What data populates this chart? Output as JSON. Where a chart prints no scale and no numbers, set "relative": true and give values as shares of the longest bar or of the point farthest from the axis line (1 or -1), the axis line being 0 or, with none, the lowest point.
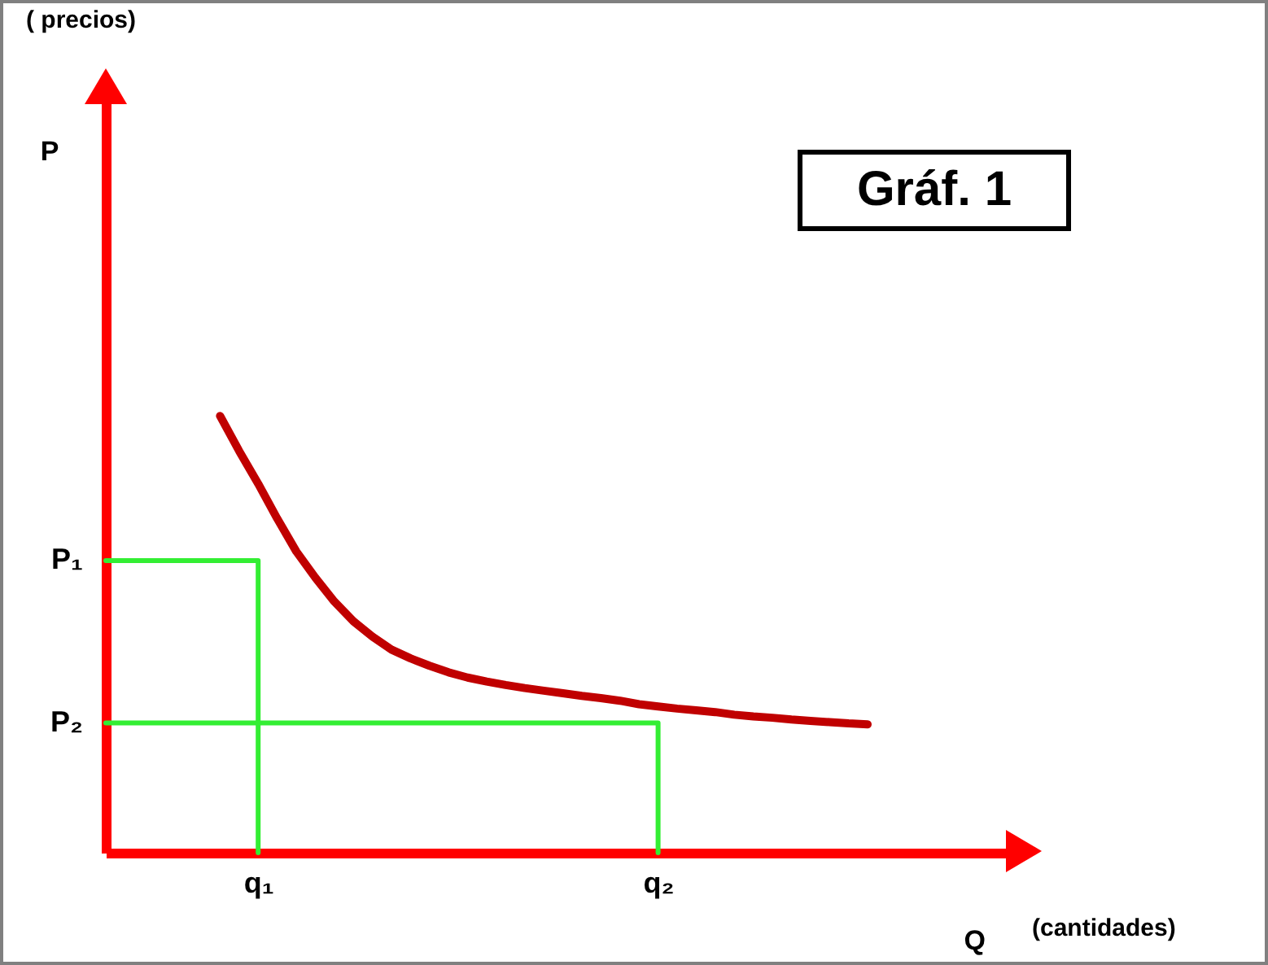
{
  "chart_data": {
    "type": "line",
    "relative": true,
    "title": "Gráf. 1",
    "xlabel": "Q",
    "ylabel": "P",
    "ylim": [
      0,
      1.74
    ],
    "annotations": [
      "( precios)",
      "(cantidades)",
      "P₁",
      "P₂"
    ],
    "categories": [
      null,
      null,
      null,
      null,
      null,
      null,
      null,
      null,
      "q₁",
      null,
      null,
      null,
      null,
      null,
      null,
      null,
      null,
      null,
      null,
      null,
      null,
      null,
      null,
      null,
      null,
      null,
      null,
      null,
      null,
      "q₂",
      null,
      null,
      null,
      null,
      null,
      null,
      null,
      null,
      null,
      null,
      null,
      null,
      null,
      null,
      null,
      null,
      null,
      null,
      null
    ],
    "line_style": "solid",
    "series": [
      {
        "color": "#c00000",
        "values": [
          null,
          null,
          null,
          null,
          null,
          null,
          1.0,
          0.92,
          0.845,
          0.765,
          0.69,
          0.63,
          0.575,
          0.53,
          0.495,
          0.465,
          0.445,
          0.428,
          0.413,
          0.401,
          0.392,
          0.384,
          0.377,
          0.371,
          0.365,
          0.359,
          0.354,
          0.348,
          0.34,
          0.335,
          0.33,
          0.326,
          0.322,
          0.316,
          0.312,
          0.309,
          0.305,
          0.302,
          0.299,
          0.296,
          0.294,
          null,
          null,
          null,
          null,
          null,
          null,
          null,
          null
        ]
      },
      {
        "type": "step",
        "color": "#33ee33",
        "values": [
          0.669,
          0.669,
          0.669,
          0.669,
          0.669,
          0.669,
          0.669,
          0.669,
          0,
          null,
          null,
          null,
          null,
          null,
          null,
          null,
          null,
          null,
          null,
          null,
          null,
          null,
          null,
          null,
          null,
          null,
          null,
          null,
          null,
          null,
          null,
          null,
          null,
          null,
          null,
          null,
          null,
          null,
          null,
          null,
          null,
          null,
          null,
          null,
          null,
          null,
          null,
          null,
          null
        ]
      },
      {
        "type": "step",
        "color": "#33ee33",
        "values": [
          0.297,
          0.297,
          0.297,
          0.297,
          0.297,
          0.297,
          0.297,
          0.297,
          0.297,
          0.297,
          0.297,
          0.297,
          0.297,
          0.297,
          0.297,
          0.297,
          0.297,
          0.297,
          0.297,
          0.297,
          0.297,
          0.297,
          0.297,
          0.297,
          0.297,
          0.297,
          0.297,
          0.297,
          0.297,
          0,
          null,
          null,
          null,
          null,
          null,
          null,
          null,
          null,
          null,
          null,
          null,
          null,
          null,
          null,
          null,
          null,
          null,
          null,
          null
        ]
      }
    ]
  }
}
